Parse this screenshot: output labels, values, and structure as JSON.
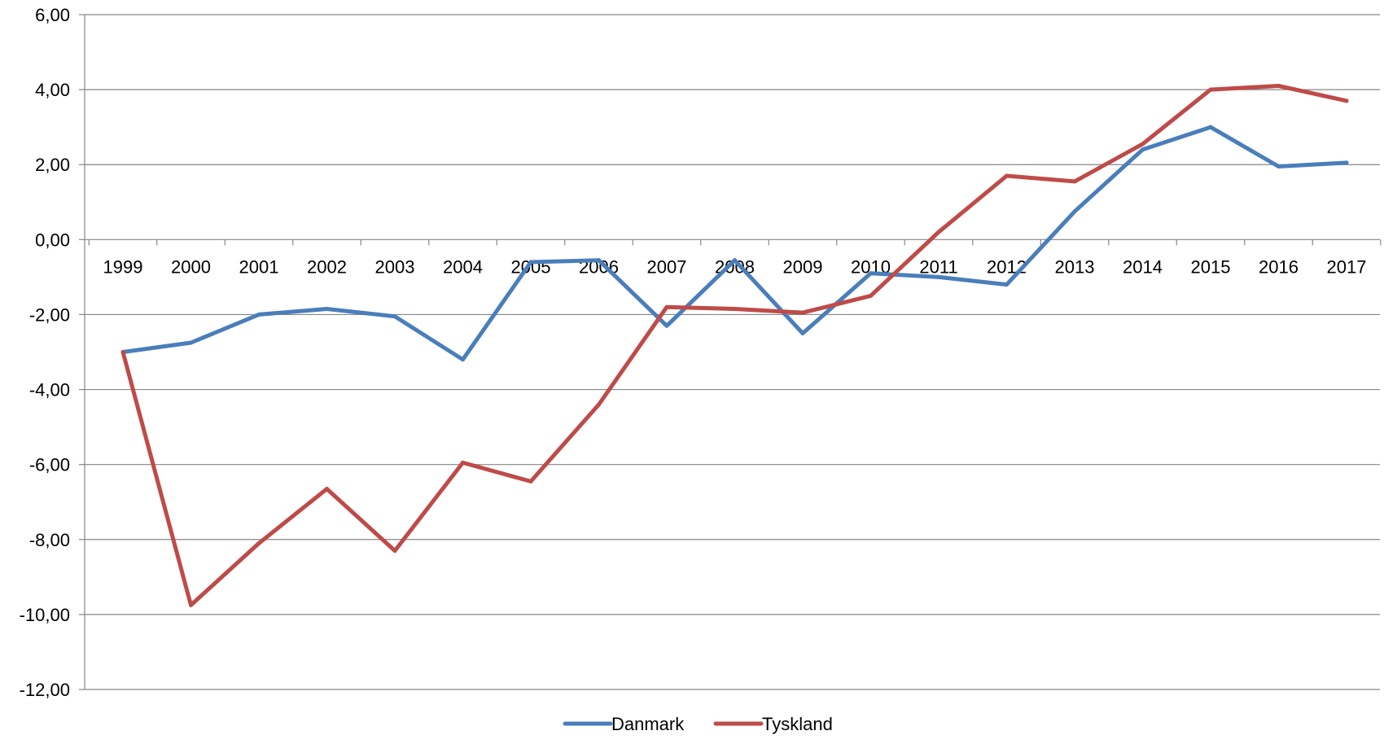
{
  "chart_data": {
    "type": "line",
    "title": "",
    "xlabel": "",
    "ylabel": "",
    "categories": [
      "1999",
      "2000",
      "2001",
      "2002",
      "2003",
      "2004",
      "2005",
      "2006",
      "2007",
      "2008",
      "2009",
      "2010",
      "2011",
      "2012",
      "2013",
      "2014",
      "2015",
      "2016",
      "2017"
    ],
    "ylim": [
      -12,
      6
    ],
    "yticks": [
      6,
      4,
      2,
      0,
      -2,
      -4,
      -6,
      -8,
      -10,
      -12
    ],
    "ytick_labels": [
      "6,00",
      "4,00",
      "2,00",
      "0,00",
      "-2,00",
      "-4,00",
      "-6,00",
      "-8,00",
      "-10,00",
      "-12,00"
    ],
    "grid": "horizontal",
    "legend_position": "bottom",
    "series": [
      {
        "name": "Danmark",
        "color": "#4a7ebb",
        "values": [
          -3.0,
          -2.75,
          -2.0,
          -1.85,
          -2.05,
          -3.2,
          -0.6,
          -0.55,
          -2.3,
          -0.55,
          -2.5,
          -0.9,
          -1.0,
          -1.2,
          0.75,
          2.4,
          3.0,
          1.95,
          2.05
        ]
      },
      {
        "name": "Tyskland",
        "color": "#be4b48",
        "values": [
          -3.0,
          -9.75,
          -8.1,
          -6.65,
          -8.3,
          -5.95,
          -6.45,
          -4.4,
          -1.8,
          -1.85,
          -1.95,
          -1.5,
          0.2,
          1.7,
          1.55,
          2.55,
          4.0,
          4.1,
          3.7
        ]
      }
    ]
  }
}
